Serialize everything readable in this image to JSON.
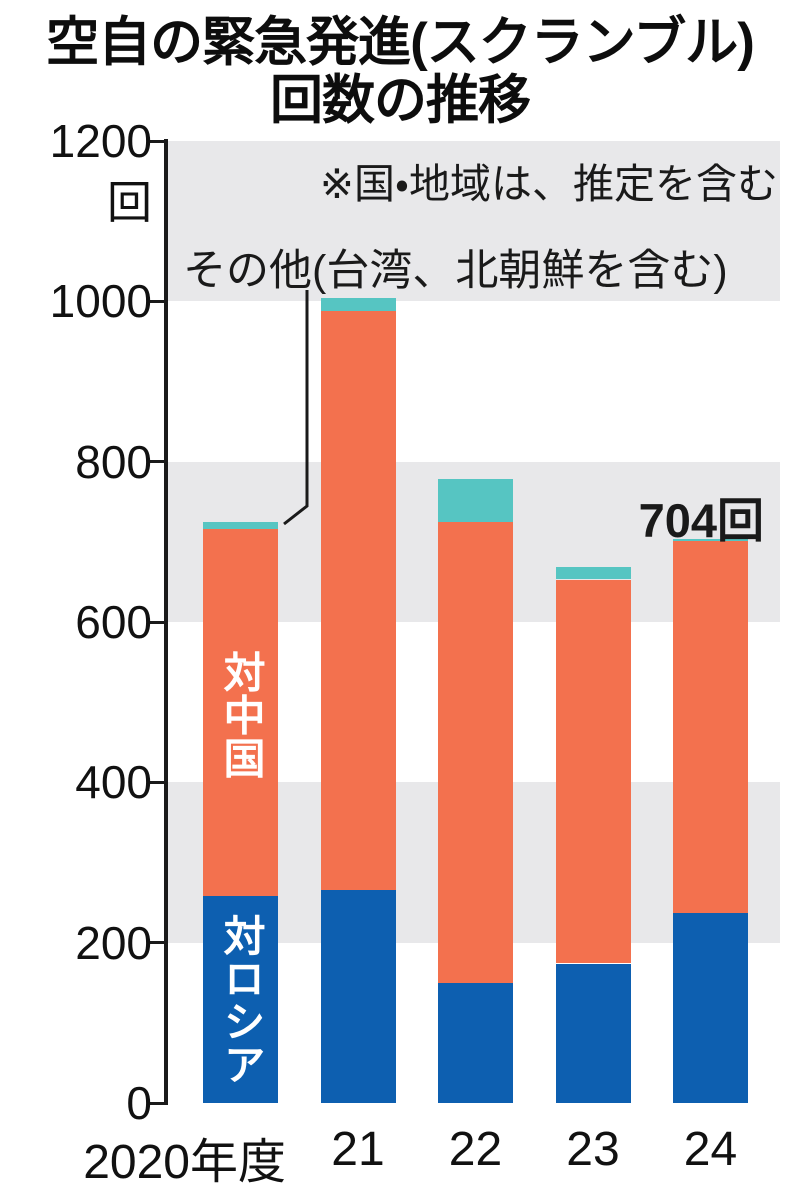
{
  "title": {
    "line1": "空自の緊急発進(スクランブル)",
    "line2": "回数の推移"
  },
  "note": "※国・地域は、推定を含む",
  "unit": "回",
  "labels": {
    "other": "その他(台湾、北朝鮮を含む)",
    "china": "対中国",
    "russia": "対ロシア"
  },
  "annotation": "704回",
  "colors": {
    "china": "#F3714E",
    "russia": "#0D5FB0",
    "other": "#56C5C2",
    "band": "#E8E8EA",
    "axis": "#1A1A1A",
    "text": "#111111"
  },
  "chart_data": {
    "type": "bar",
    "stacked": true,
    "title": "空自の緊急発進(スクランブル)回数の推移",
    "categories": [
      "2020年度",
      "21",
      "22",
      "23",
      "24"
    ],
    "series": [
      {
        "name": "対ロシア",
        "color": "#0D5FB0",
        "values": [
          258,
          266,
          150,
          174,
          237
        ]
      },
      {
        "name": "対中国",
        "color": "#F3714E",
        "values": [
          458,
          722,
          575,
          479,
          464
        ]
      },
      {
        "name": "その他(台湾、北朝鮮を含む)",
        "color": "#56C5C2",
        "values": [
          9,
          16,
          53,
          16,
          3
        ]
      }
    ],
    "totals": [
      725,
      1004,
      778,
      669,
      704
    ],
    "ylabel": "回",
    "ylim": [
      0,
      1200
    ],
    "ytick_interval": 200,
    "grid": "alternating-gray-bands",
    "legend": "none",
    "annotations": [
      {
        "text": "704回",
        "category": "24"
      }
    ]
  }
}
